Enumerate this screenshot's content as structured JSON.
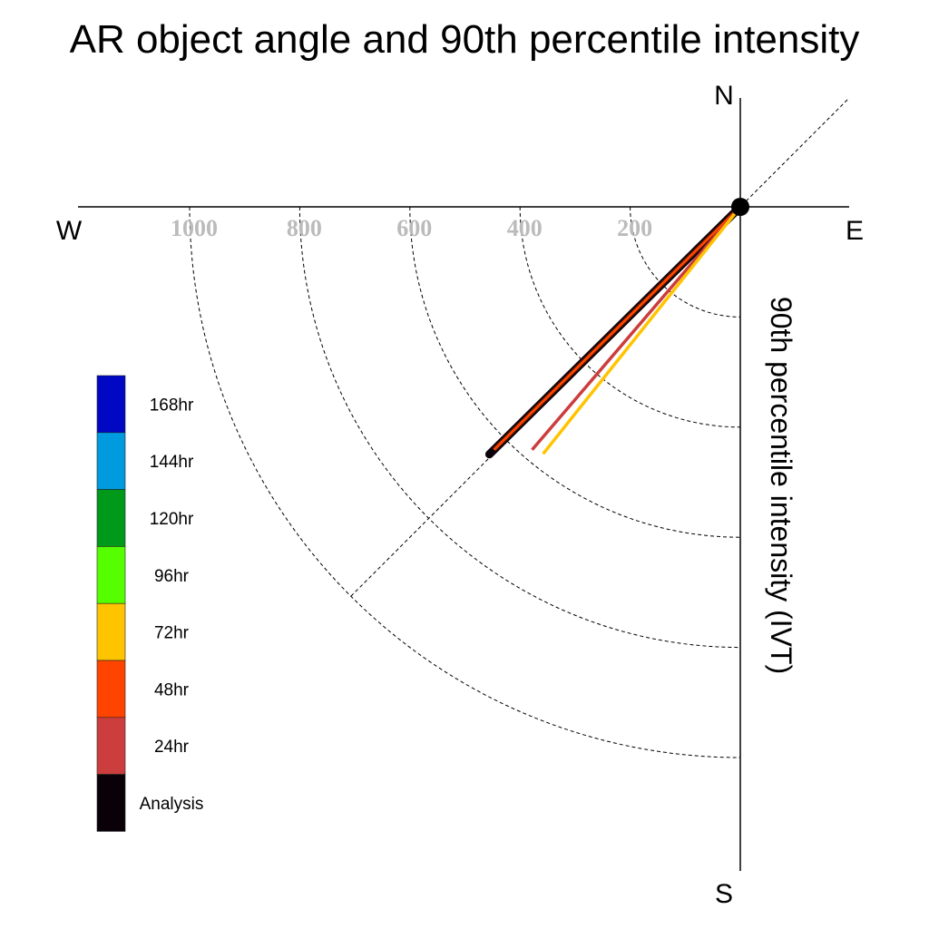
{
  "chart_data": {
    "type": "polar-vector",
    "title": "AR object angle and 90th percentile intensity",
    "radial_label": "90th percentile intensity (IVT)",
    "compass": {
      "north": "N",
      "south": "S",
      "east": "E",
      "west": "W"
    },
    "radial_ticks": [
      {
        "value": 200,
        "label": "200"
      },
      {
        "value": 400,
        "label": "400"
      },
      {
        "value": 600,
        "label": "600"
      },
      {
        "value": 800,
        "label": "800"
      },
      {
        "value": 1000,
        "label": "1000"
      }
    ],
    "grid": true,
    "reference_angle_deg": 45,
    "legend_position": "left",
    "legend": [
      {
        "label": "168hr",
        "color": "#0008c4"
      },
      {
        "label": "144hr",
        "color": "#009ade"
      },
      {
        "label": "120hr",
        "color": "#00991a"
      },
      {
        "label": "96hr",
        "color": "#55ff00"
      },
      {
        "label": "72hr",
        "color": "#ffc400"
      },
      {
        "label": "48hr",
        "color": "#ff4400"
      },
      {
        "label": "24hr",
        "color": "#cc3d3d"
      },
      {
        "label": "Analysis",
        "color": "#0a0008"
      }
    ],
    "series": [
      {
        "name": "Analysis",
        "color": "#0a0008",
        "angle_deg": 225.4,
        "intensity": 640
      },
      {
        "name": "48hr",
        "color": "#ff4400",
        "angle_deg": 225.4,
        "intensity": 628
      },
      {
        "name": "24hr",
        "color": "#cc3d3d",
        "angle_deg": 220.6,
        "intensity": 581
      },
      {
        "name": "72hr",
        "color": "#ffc400",
        "angle_deg": 218.6,
        "intensity": 574
      }
    ]
  }
}
